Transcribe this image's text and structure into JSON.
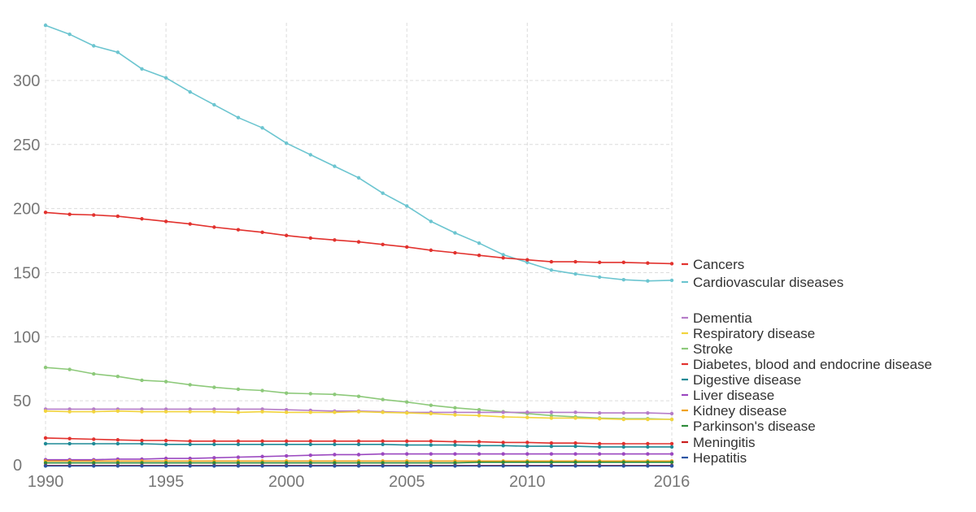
{
  "chart_data": {
    "type": "line",
    "title": "",
    "xlabel": "",
    "ylabel": "",
    "xlim": [
      1990,
      2016
    ],
    "ylim": [
      0,
      345
    ],
    "x_ticks": [
      1990,
      1995,
      2000,
      2005,
      2010,
      2016
    ],
    "y_ticks": [
      0,
      50,
      100,
      150,
      200,
      250,
      300
    ],
    "grid": true,
    "legend_position": "right",
    "x": [
      1990,
      1991,
      1992,
      1993,
      1994,
      1995,
      1996,
      1997,
      1998,
      1999,
      2000,
      2001,
      2002,
      2003,
      2004,
      2005,
      2006,
      2007,
      2008,
      2009,
      2010,
      2011,
      2012,
      2013,
      2014,
      2015,
      2016
    ],
    "series": [
      {
        "name": "Cardiovascular diseases",
        "color": "#6cc5d0",
        "values": [
          343,
          336,
          327,
          322,
          309,
          302,
          291,
          281,
          271,
          263,
          251,
          242,
          233,
          224,
          212,
          202,
          190,
          181,
          173,
          164,
          158,
          152,
          149,
          146.5,
          144.5,
          143.5,
          144
        ]
      },
      {
        "name": "Cancers",
        "color": "#e2322e",
        "values": [
          197,
          195.5,
          195,
          194,
          192,
          190,
          188,
          185.5,
          183.5,
          181.5,
          179,
          177,
          175.5,
          174,
          172,
          170,
          167.5,
          165.5,
          163.5,
          161.5,
          160,
          158.5,
          158.5,
          158,
          158,
          157.5,
          157
        ]
      },
      {
        "name": "Stroke",
        "color": "#8dc97a",
        "values": [
          76,
          74.5,
          71,
          69,
          66,
          65,
          62.5,
          60.5,
          59,
          58,
          56,
          55.5,
          55,
          53.5,
          51,
          49,
          46.5,
          44.5,
          43,
          41.5,
          40,
          38.5,
          37.5,
          36.5,
          36,
          36,
          35.5
        ]
      },
      {
        "name": "Dementia",
        "color": "#b57cc8",
        "values": [
          43.5,
          43.5,
          43.5,
          43.5,
          43.5,
          43.5,
          43.5,
          43.5,
          43.5,
          43.5,
          43,
          42.5,
          42,
          42,
          41.5,
          41,
          41,
          41,
          41,
          41,
          41,
          41,
          41,
          40.5,
          40.5,
          40.5,
          40
        ]
      },
      {
        "name": "Respiratory disease",
        "color": "#f2d43c",
        "values": [
          42,
          41.5,
          41.5,
          42,
          41.5,
          41.5,
          41.5,
          41.5,
          41,
          41.5,
          41,
          41,
          41,
          41.5,
          41,
          40.5,
          40,
          39,
          38.5,
          37.5,
          37,
          36.5,
          36.5,
          36,
          35.5,
          35.5,
          35.5
        ]
      },
      {
        "name": "Diabetes, blood and endocrine disease",
        "color": "#e2322e",
        "values": [
          21,
          20.5,
          20,
          19.5,
          19,
          19,
          18.5,
          18.5,
          18.5,
          18.5,
          18.5,
          18.5,
          18.5,
          18.5,
          18.5,
          18.5,
          18.5,
          18,
          18,
          17.5,
          17.5,
          17,
          17,
          16.5,
          16.5,
          16.5,
          16.5
        ]
      },
      {
        "name": "Digestive disease",
        "color": "#1f8a96",
        "values": [
          16.5,
          16.5,
          16.5,
          16.5,
          16.5,
          16,
          16,
          16,
          16,
          16,
          16,
          16,
          16,
          16,
          16,
          15.5,
          15.5,
          15.5,
          15,
          15,
          14.5,
          14.5,
          14.5,
          14,
          14,
          14,
          14
        ]
      },
      {
        "name": "Liver disease",
        "color": "#9b48c0",
        "values": [
          4,
          4,
          4,
          4.5,
          4.5,
          5,
          5,
          5.5,
          6,
          6.5,
          7,
          7.5,
          8,
          8,
          8.5,
          8.5,
          8.5,
          8.5,
          8.5,
          8.5,
          8.5,
          8.5,
          8.5,
          8.5,
          8.5,
          8.5,
          8.5
        ]
      },
      {
        "name": "Kidney disease",
        "color": "#f0a21b",
        "values": [
          3,
          3,
          3,
          3,
          3,
          3,
          3,
          3,
          3,
          3,
          3,
          3,
          3,
          3,
          3,
          3,
          3,
          3,
          3,
          3,
          3,
          3,
          3,
          3,
          3,
          3,
          3
        ]
      },
      {
        "name": "Parkinson's disease",
        "color": "#2e8b3a",
        "values": [
          1.5,
          1.5,
          1.5,
          1.5,
          1.5,
          1.5,
          1.5,
          1.5,
          1.5,
          1.5,
          1.5,
          1.5,
          1.5,
          1.5,
          1.5,
          1.5,
          1.5,
          1.5,
          2,
          2,
          2,
          2,
          2,
          2,
          2,
          2,
          2
        ]
      },
      {
        "name": "Meningitis",
        "color": "#c91d1d",
        "values": [
          -0.5,
          -0.5,
          -0.5,
          -0.5,
          -0.5,
          -0.5,
          -0.5,
          -0.5,
          -0.5,
          -0.5,
          -0.5,
          -0.5,
          -0.5,
          -0.5,
          -0.5,
          -0.5,
          -0.5,
          -0.5,
          -0.5,
          -0.5,
          -0.5,
          -0.5,
          -0.5,
          -0.5,
          -0.5,
          -0.5,
          -0.5
        ]
      },
      {
        "name": "Hepatitis",
        "color": "#2b55a3",
        "values": [
          -0.8,
          -0.8,
          -0.8,
          -0.8,
          -0.8,
          -0.8,
          -0.8,
          -0.8,
          -0.8,
          -0.8,
          -0.8,
          -0.8,
          -0.8,
          -0.8,
          -0.8,
          -0.8,
          -0.8,
          -0.8,
          -0.8,
          -0.8,
          -0.8,
          -0.8,
          -0.8,
          -0.8,
          -0.8,
          -0.8,
          -0.8
        ]
      }
    ],
    "legend": [
      {
        "series": "Cancers",
        "color": "#e2322e"
      },
      {
        "series": "Cardiovascular diseases",
        "color": "#6cc5d0"
      },
      {
        "series": "Dementia",
        "color": "#b57cc8"
      },
      {
        "series": "Respiratory disease",
        "color": "#f2d43c"
      },
      {
        "series": "Stroke",
        "color": "#8dc97a"
      },
      {
        "series": "Diabetes, blood and endocrine disease",
        "color": "#e2322e"
      },
      {
        "series": "Digestive disease",
        "color": "#1f8a96"
      },
      {
        "series": "Liver disease",
        "color": "#9b48c0"
      },
      {
        "series": "Kidney disease",
        "color": "#f0a21b"
      },
      {
        "series": "Parkinson's disease",
        "color": "#2e8b3a"
      },
      {
        "series": "Meningitis",
        "color": "#c91d1d"
      },
      {
        "series": "Hepatitis",
        "color": "#2b55a3"
      }
    ]
  }
}
